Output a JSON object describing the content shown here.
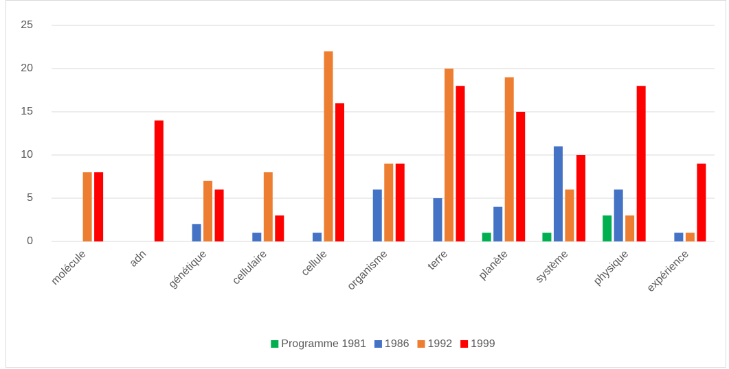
{
  "chart_data": {
    "type": "bar",
    "categories": [
      "molécule",
      "adn",
      "génétique",
      "cellulaire",
      "cellule",
      "organisme",
      "terre",
      "planète",
      "système",
      "physique",
      "expérience"
    ],
    "series": [
      {
        "name": "Programme 1981",
        "color": "#00b050",
        "values": [
          0,
          0,
          0,
          0,
          0,
          0,
          0,
          1,
          1,
          3,
          0
        ]
      },
      {
        "name": "1986",
        "color": "#4472c4",
        "values": [
          0,
          0,
          2,
          1,
          1,
          6,
          5,
          4,
          11,
          6,
          1
        ]
      },
      {
        "name": "1992",
        "color": "#ed7d31",
        "values": [
          8,
          0,
          7,
          8,
          22,
          9,
          20,
          19,
          6,
          3,
          1
        ]
      },
      {
        "name": "1999",
        "color": "#ff0000",
        "values": [
          8,
          14,
          6,
          3,
          16,
          9,
          18,
          15,
          10,
          18,
          9
        ]
      }
    ],
    "ylim": [
      0,
      25
    ],
    "yticks": [
      0,
      5,
      10,
      15,
      20,
      25
    ],
    "grid": true,
    "legend": "bottom"
  }
}
